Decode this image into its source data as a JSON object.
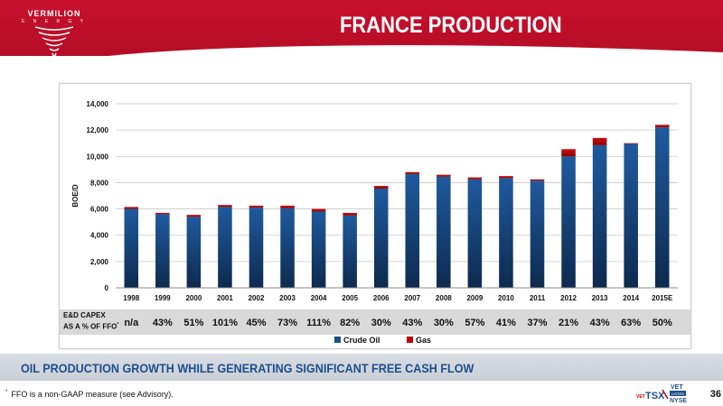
{
  "header": {
    "title": "FRANCE PRODUCTION",
    "logo_name": "VERMILION",
    "logo_sub": "E N E R G Y"
  },
  "colors": {
    "header_red": "#c8102e",
    "crude_oil": "#1f4e8c",
    "gas": "#c00000",
    "footer_title": "#1f4e8c"
  },
  "chart_data": {
    "type": "bar",
    "stacked": true,
    "categories": [
      "1998",
      "1999",
      "2000",
      "2001",
      "2002",
      "2003",
      "2004",
      "2005",
      "2006",
      "2007",
      "2008",
      "2009",
      "2010",
      "2011",
      "2012",
      "2013",
      "2014",
      "2015E"
    ],
    "series": [
      {
        "name": "Crude Oil",
        "values": [
          6000,
          5600,
          5400,
          6150,
          6100,
          6050,
          5800,
          5500,
          7550,
          8650,
          8450,
          8250,
          8350,
          8150,
          10000,
          10850,
          10950,
          12200
        ]
      },
      {
        "name": "Gas",
        "values": [
          150,
          100,
          150,
          150,
          150,
          200,
          200,
          200,
          200,
          150,
          150,
          150,
          150,
          100,
          550,
          550,
          50,
          200
        ]
      }
    ],
    "ylabel": "BOE/D",
    "xlabel": "",
    "ylim": [
      0,
      14000
    ],
    "yticks": [
      0,
      2000,
      4000,
      6000,
      8000,
      10000,
      12000,
      14000
    ],
    "ytick_labels": [
      "0",
      "2,000",
      "4,000",
      "6,000",
      "8,000",
      "10,000",
      "12,000",
      "14,000"
    ],
    "grid": true,
    "legend_position": "bottom"
  },
  "capex": {
    "label_line1": "E&D CAPEX",
    "label_line2": "AS A % OF FFO",
    "label_sup": "*",
    "values": [
      "n/a",
      "43%",
      "51%",
      "101%",
      "45%",
      "73%",
      "111%",
      "82%",
      "30%",
      "43%",
      "30%",
      "57%",
      "41%",
      "37%",
      "21%",
      "43%",
      "63%",
      "50%"
    ]
  },
  "footer": {
    "title": "OIL PRODUCTION GROWTH WHILE GENERATING SIGNIFICANT FREE CASH FLOW",
    "footnote_mark": "*",
    "footnote": "FFO is a non-GAAP measure (see Advisory).",
    "page_number": "36",
    "ticker_vet": "VET",
    "ticker_tsx": "TSX",
    "ticker_vet2": "VET",
    "ticker_listed": "LISTED",
    "ticker_nyse": "NYSE"
  }
}
